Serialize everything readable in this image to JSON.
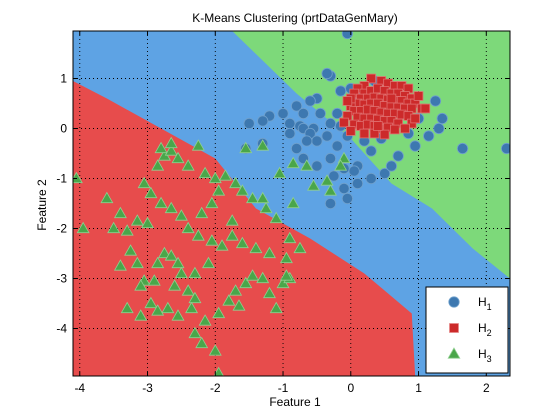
{
  "chart_data": {
    "type": "scatter",
    "title": "K-Means Clustering (prtDataGenMary)",
    "xlabel": "Feature 1",
    "ylabel": "Feature 2",
    "xlim": [
      -4.1,
      2.35
    ],
    "ylim": [
      -4.95,
      1.95
    ],
    "xticks": [
      -4,
      -3,
      -2,
      -1,
      0,
      1,
      2
    ],
    "yticks": [
      -4,
      -3,
      -2,
      -1,
      0,
      1
    ],
    "xtick_labels": [
      "-4",
      "-3",
      "-2",
      "-1",
      "0",
      "1",
      "2"
    ],
    "ytick_labels": [
      "-4",
      "-3",
      "-2",
      "-1",
      "0",
      "1"
    ],
    "grid": true,
    "grid_style": "dotted",
    "legend_position": "bottom-right",
    "background_regions": [
      {
        "class": "H3",
        "color": "#e74c4c"
      },
      {
        "class": "H1",
        "color": "#5ea3e4"
      },
      {
        "class": "H2",
        "color": "#7dd97a"
      }
    ],
    "series": [
      {
        "name": "H",
        "sub": "1",
        "marker": "circle",
        "color": "#3d78b0",
        "points": [
          [
            -0.05,
            1.9
          ],
          [
            -0.3,
            1.05
          ],
          [
            -0.35,
            1.1
          ],
          [
            -0.15,
            0.75
          ],
          [
            0.0,
            0.8
          ],
          [
            0.1,
            0.65
          ],
          [
            -0.5,
            0.6
          ],
          [
            -0.6,
            0.55
          ],
          [
            -0.8,
            0.45
          ],
          [
            -1.0,
            0.3
          ],
          [
            -1.2,
            0.25
          ],
          [
            -1.3,
            0.15
          ],
          [
            -1.5,
            0.1
          ],
          [
            -0.9,
            0.1
          ],
          [
            -0.75,
            0.05
          ],
          [
            -0.7,
            0.0
          ],
          [
            -0.55,
            0.0
          ],
          [
            -0.3,
            0.1
          ],
          [
            -0.15,
            0.05
          ],
          [
            -0.6,
            -0.1
          ],
          [
            -0.35,
            -0.15
          ],
          [
            -0.5,
            -0.25
          ],
          [
            -0.2,
            -0.35
          ],
          [
            -1.55,
            -0.4
          ],
          [
            -1.3,
            -0.3
          ],
          [
            -0.8,
            -0.4
          ],
          [
            -0.7,
            -0.6
          ],
          [
            -0.3,
            -0.6
          ],
          [
            -0.5,
            -0.75
          ],
          [
            -0.1,
            -0.8
          ],
          [
            0.1,
            -0.75
          ],
          [
            0.05,
            -0.85
          ],
          [
            -0.25,
            -0.95
          ],
          [
            -0.1,
            -1.2
          ],
          [
            -0.3,
            -1.5
          ],
          [
            -0.05,
            -1.4
          ],
          [
            0.1,
            -1.1
          ],
          [
            0.3,
            -1.0
          ],
          [
            0.5,
            -0.9
          ],
          [
            0.6,
            -0.75
          ],
          [
            0.3,
            -0.45
          ],
          [
            0.45,
            -0.2
          ],
          [
            0.7,
            -0.55
          ],
          [
            0.95,
            -0.35
          ],
          [
            0.85,
            -0.1
          ],
          [
            1.0,
            0.2
          ],
          [
            1.15,
            -0.15
          ],
          [
            1.3,
            0.0
          ],
          [
            1.25,
            0.55
          ],
          [
            1.35,
            0.2
          ],
          [
            0.2,
            0.05
          ],
          [
            -0.05,
            -0.15
          ],
          [
            0.2,
            -0.25
          ],
          [
            -0.45,
            0.3
          ],
          [
            -0.7,
            0.3
          ],
          [
            0.35,
            0.95
          ],
          [
            0.05,
            0.55
          ],
          [
            1.65,
            -0.4
          ],
          [
            2.3,
            -0.4
          ],
          [
            -0.2,
            0.3
          ],
          [
            -0.9,
            -0.1
          ],
          [
            -0.65,
            -0.25
          ]
        ]
      },
      {
        "name": "H",
        "sub": "2",
        "marker": "square",
        "color": "#cc2a2a",
        "points": [
          [
            0.3,
            1.0
          ],
          [
            0.45,
            0.95
          ],
          [
            0.55,
            0.9
          ],
          [
            0.65,
            0.85
          ],
          [
            0.75,
            0.85
          ],
          [
            0.85,
            0.8
          ],
          [
            0.2,
            0.85
          ],
          [
            0.1,
            0.8
          ],
          [
            0.05,
            0.7
          ],
          [
            0.2,
            0.7
          ],
          [
            0.3,
            0.75
          ],
          [
            0.4,
            0.8
          ],
          [
            0.5,
            0.75
          ],
          [
            0.6,
            0.7
          ],
          [
            0.7,
            0.7
          ],
          [
            0.8,
            0.65
          ],
          [
            0.9,
            0.6
          ],
          [
            0.15,
            0.6
          ],
          [
            0.25,
            0.6
          ],
          [
            0.35,
            0.62
          ],
          [
            0.45,
            0.6
          ],
          [
            0.55,
            0.58
          ],
          [
            0.65,
            0.55
          ],
          [
            0.75,
            0.55
          ],
          [
            0.85,
            0.5
          ],
          [
            0.95,
            0.5
          ],
          [
            0.1,
            0.5
          ],
          [
            0.2,
            0.48
          ],
          [
            0.3,
            0.5
          ],
          [
            0.4,
            0.5
          ],
          [
            0.5,
            0.45
          ],
          [
            0.6,
            0.45
          ],
          [
            0.7,
            0.42
          ],
          [
            0.8,
            0.4
          ],
          [
            0.9,
            0.4
          ],
          [
            0.0,
            0.45
          ],
          [
            0.05,
            0.35
          ],
          [
            0.15,
            0.35
          ],
          [
            0.25,
            0.38
          ],
          [
            0.35,
            0.35
          ],
          [
            0.45,
            0.32
          ],
          [
            0.55,
            0.3
          ],
          [
            0.65,
            0.3
          ],
          [
            0.75,
            0.28
          ],
          [
            0.85,
            0.25
          ],
          [
            -0.05,
            0.25
          ],
          [
            0.1,
            0.22
          ],
          [
            0.2,
            0.2
          ],
          [
            0.3,
            0.2
          ],
          [
            0.4,
            0.18
          ],
          [
            0.5,
            0.15
          ],
          [
            0.6,
            0.15
          ],
          [
            0.7,
            0.1
          ],
          [
            -0.1,
            0.12
          ],
          [
            0.05,
            0.08
          ],
          [
            0.15,
            0.05
          ],
          [
            0.25,
            0.08
          ],
          [
            0.35,
            0.05
          ],
          [
            0.45,
            0.0
          ],
          [
            0.55,
            0.02
          ],
          [
            0.65,
            -0.02
          ],
          [
            0.9,
            0.1
          ],
          [
            1.05,
            0.4
          ],
          [
            1.1,
            0.4
          ],
          [
            0.0,
            -0.05
          ],
          [
            0.2,
            -0.1
          ],
          [
            0.35,
            -0.1
          ],
          [
            0.5,
            -0.12
          ],
          [
            0.8,
            0.0
          ],
          [
            0.95,
            0.2
          ],
          [
            1.0,
            0.65
          ],
          [
            0.0,
            0.6
          ],
          [
            -0.05,
            0.55
          ],
          [
            0.4,
            0.05
          ],
          [
            0.6,
            0.6
          ]
        ]
      },
      {
        "name": "H",
        "sub": "3",
        "marker": "triangle",
        "color": "#4aa64a",
        "points": [
          [
            -4.05,
            -1.0
          ],
          [
            -3.95,
            -2.0
          ],
          [
            -3.6,
            -1.4
          ],
          [
            -3.4,
            -1.7
          ],
          [
            -3.5,
            -2.0
          ],
          [
            -3.3,
            -2.05
          ],
          [
            -3.15,
            -1.85
          ],
          [
            -3.0,
            -1.9
          ],
          [
            -3.25,
            -2.45
          ],
          [
            -3.15,
            -2.7
          ],
          [
            -3.05,
            -3.05
          ],
          [
            -3.1,
            -3.15
          ],
          [
            -2.9,
            -3.05
          ],
          [
            -2.85,
            -2.7
          ],
          [
            -2.75,
            -2.5
          ],
          [
            -2.65,
            -2.55
          ],
          [
            -2.55,
            -2.7
          ],
          [
            -2.5,
            -2.9
          ],
          [
            -2.6,
            -3.15
          ],
          [
            -2.4,
            -3.25
          ],
          [
            -2.3,
            -3.4
          ],
          [
            -3.3,
            -3.6
          ],
          [
            -3.1,
            -3.75
          ],
          [
            -2.95,
            -3.5
          ],
          [
            -2.85,
            -3.65
          ],
          [
            -2.7,
            -3.6
          ],
          [
            -2.55,
            -3.75
          ],
          [
            -2.35,
            -3.6
          ],
          [
            -2.15,
            -3.85
          ],
          [
            -1.95,
            -3.7
          ],
          [
            -2.3,
            -4.1
          ],
          [
            -2.2,
            -4.3
          ],
          [
            -2.0,
            -4.45
          ],
          [
            -1.95,
            -4.9
          ],
          [
            -1.8,
            -3.45
          ],
          [
            -1.65,
            -3.55
          ],
          [
            -1.7,
            -3.25
          ],
          [
            -1.55,
            -3.1
          ],
          [
            -1.45,
            -2.95
          ],
          [
            -1.3,
            -3.0
          ],
          [
            -1.2,
            -3.3
          ],
          [
            -1.1,
            -3.6
          ],
          [
            -1.0,
            -3.1
          ],
          [
            -0.9,
            -3.0
          ],
          [
            -0.95,
            -2.6
          ],
          [
            -1.2,
            -2.5
          ],
          [
            -1.4,
            -2.4
          ],
          [
            -1.6,
            -2.3
          ],
          [
            -1.75,
            -2.15
          ],
          [
            -1.9,
            -2.35
          ],
          [
            -2.05,
            -2.25
          ],
          [
            -2.25,
            -2.15
          ],
          [
            -2.4,
            -2.0
          ],
          [
            -2.5,
            -1.75
          ],
          [
            -2.65,
            -1.6
          ],
          [
            -2.8,
            -1.5
          ],
          [
            -2.95,
            -1.3
          ],
          [
            -3.05,
            -1.1
          ],
          [
            -2.85,
            -0.75
          ],
          [
            -2.75,
            -0.55
          ],
          [
            -2.65,
            -0.45
          ],
          [
            -2.8,
            -0.4
          ],
          [
            -2.55,
            -0.6
          ],
          [
            -2.4,
            -0.75
          ],
          [
            -2.15,
            -0.9
          ],
          [
            -2.0,
            -1.0
          ],
          [
            -1.85,
            -0.95
          ],
          [
            -1.7,
            -1.1
          ],
          [
            -1.6,
            -1.25
          ],
          [
            -1.45,
            -1.4
          ],
          [
            -1.55,
            -0.4
          ],
          [
            -1.3,
            -0.35
          ],
          [
            -1.05,
            -0.9
          ],
          [
            -0.85,
            -0.7
          ],
          [
            -0.65,
            -0.75
          ],
          [
            -0.55,
            -1.15
          ],
          [
            -0.35,
            -1.05
          ],
          [
            -0.3,
            -1.25
          ],
          [
            -0.1,
            -0.6
          ],
          [
            -0.15,
            -0.75
          ],
          [
            -1.25,
            -1.6
          ],
          [
            -1.1,
            -1.8
          ],
          [
            -0.9,
            -2.2
          ],
          [
            -0.75,
            -2.4
          ],
          [
            -0.85,
            -1.5
          ],
          [
            -0.95,
            -2.95
          ],
          [
            -2.1,
            -2.7
          ],
          [
            -2.05,
            -1.5
          ],
          [
            -1.95,
            -1.25
          ],
          [
            -2.2,
            -1.7
          ],
          [
            -1.75,
            -1.85
          ],
          [
            -1.3,
            -1.4
          ],
          [
            -2.3,
            -2.9
          ],
          [
            -2.65,
            -0.3
          ],
          [
            -2.25,
            -0.35
          ],
          [
            -3.4,
            -2.75
          ]
        ]
      }
    ]
  }
}
